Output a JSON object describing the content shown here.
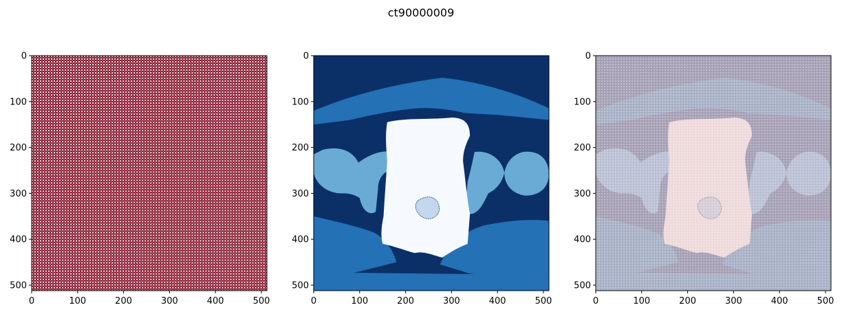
{
  "figure": {
    "title": "ct90000009",
    "background": "#ffffff"
  },
  "chart_data": [
    {
      "type": "heatmap",
      "image_content": "dense checkerboard of dark red and white cells",
      "colors": {
        "dark": "#7a0018",
        "light": "#ffffff"
      },
      "xlim": [
        0,
        512
      ],
      "ylim": [
        512,
        0
      ],
      "x_ticks": [
        0,
        100,
        200,
        300,
        400,
        500
      ],
      "y_ticks": [
        0,
        100,
        200,
        300,
        400,
        500
      ],
      "x_tick_labels": [
        "0",
        "100",
        "200",
        "300",
        "400",
        "500"
      ],
      "y_tick_labels": [
        "0",
        "100",
        "200",
        "300",
        "400",
        "500"
      ],
      "grid": false
    },
    {
      "type": "heatmap",
      "image_content": "segmentation label map (Blues colormap)",
      "colors": {
        "background": "#0b3068",
        "outer_band": "#2471b5",
        "mid_region": "#6aabd6",
        "center_region": "#f6faff",
        "inner_spot": "#c3d8ee"
      },
      "xlim": [
        0,
        512
      ],
      "ylim": [
        512,
        0
      ],
      "x_ticks": [
        0,
        100,
        200,
        300,
        400,
        500
      ],
      "y_ticks": [
        0,
        100,
        200,
        300,
        400,
        500
      ],
      "x_tick_labels": [
        "0",
        "100",
        "200",
        "300",
        "400",
        "500"
      ],
      "y_tick_labels": [
        "0",
        "100",
        "200",
        "300",
        "400",
        "500"
      ],
      "grid": false
    },
    {
      "type": "heatmap",
      "image_content": "overlay of checkerboard image and label map at reduced opacity",
      "colors": {
        "background": "#a49fb4",
        "outer_band": "#a6afc5",
        "mid_region": "#b9bfd3",
        "center_region": "#eed9da",
        "inner_spot": "#d4ccd6"
      },
      "xlim": [
        0,
        512
      ],
      "ylim": [
        512,
        0
      ],
      "x_ticks": [
        0,
        100,
        200,
        300,
        400,
        500
      ],
      "y_ticks": [
        0,
        100,
        200,
        300,
        400,
        500
      ],
      "x_tick_labels": [
        "0",
        "100",
        "200",
        "300",
        "400",
        "500"
      ],
      "y_tick_labels": [
        "0",
        "100",
        "200",
        "300",
        "400",
        "500"
      ],
      "grid": false
    }
  ]
}
